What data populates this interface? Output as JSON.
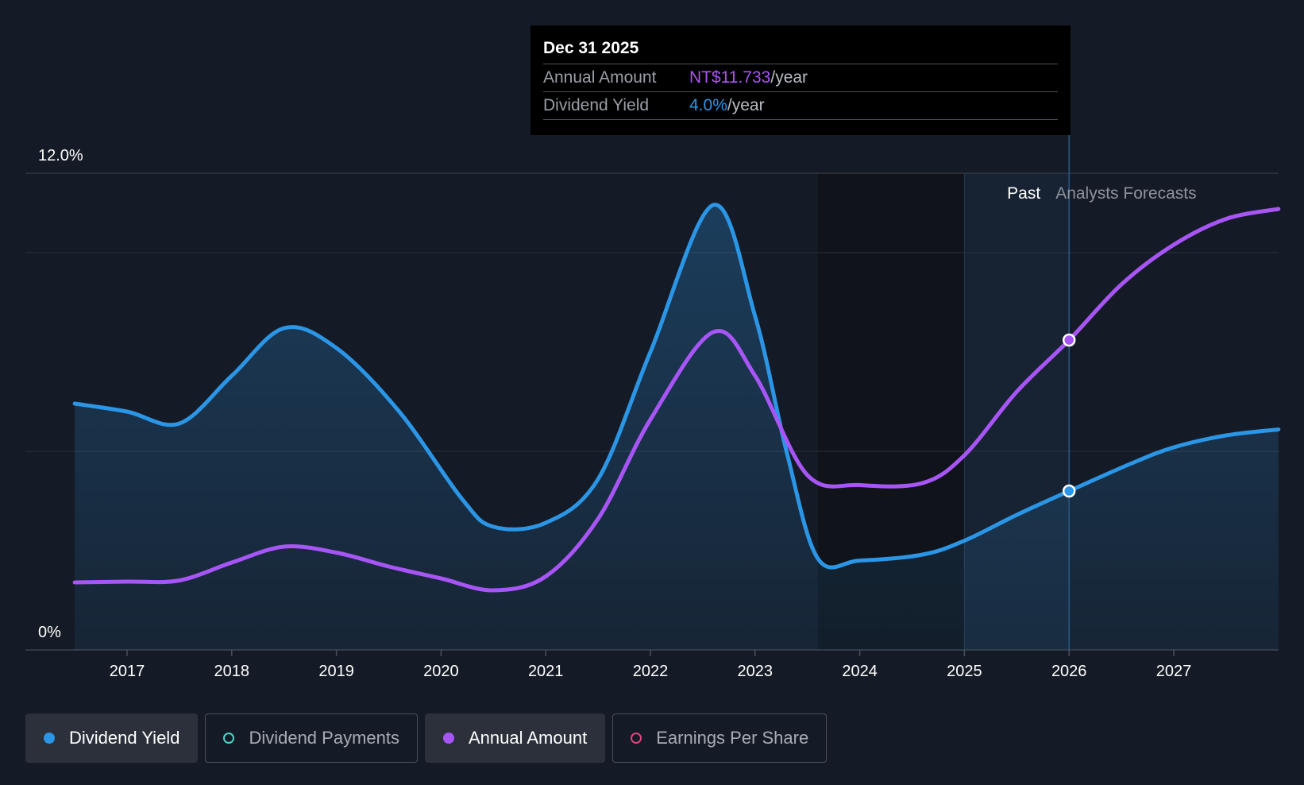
{
  "tooltip": {
    "date": "Dec 31 2025",
    "rows": [
      {
        "label": "Annual Amount",
        "value": "NT$11.733",
        "unit": "/year"
      },
      {
        "label": "Dividend Yield",
        "value": "4.0%",
        "unit": "/year"
      }
    ]
  },
  "legend": [
    {
      "label": "Dividend Yield",
      "color": "#2b95e6",
      "active": true,
      "filled": true
    },
    {
      "label": "Dividend Payments",
      "color": "#4fd1c5",
      "active": false,
      "filled": false
    },
    {
      "label": "Annual Amount",
      "color": "#a855f7",
      "active": true,
      "filled": true
    },
    {
      "label": "Earnings Per Share",
      "color": "#e0457b",
      "active": false,
      "filled": false
    }
  ],
  "chart_data": {
    "type": "line",
    "y_ticks": [
      "12.0%",
      "0%"
    ],
    "ylim": [
      0,
      12
    ],
    "xlim": [
      2016.5,
      2028.0
    ],
    "x_ticks": [
      "2017",
      "2018",
      "2019",
      "2020",
      "2021",
      "2022",
      "2023",
      "2024",
      "2025",
      "2026",
      "2027"
    ],
    "regions": {
      "past_label": "Past",
      "forecast_label": "Analysts Forecasts",
      "past_start": 2025.0,
      "forecast_start": 2026.0
    },
    "grid_y": [
      12,
      10,
      5,
      0
    ],
    "series": [
      {
        "name": "Dividend Yield",
        "color": "#2b95e6",
        "area": true,
        "points": [
          [
            2016.5,
            6.2
          ],
          [
            2017.0,
            6.0
          ],
          [
            2017.5,
            5.7
          ],
          [
            2018.0,
            6.9
          ],
          [
            2018.5,
            8.1
          ],
          [
            2019.0,
            7.6
          ],
          [
            2019.6,
            6.0
          ],
          [
            2020.2,
            3.8
          ],
          [
            2020.5,
            3.1
          ],
          [
            2021.0,
            3.2
          ],
          [
            2021.5,
            4.3
          ],
          [
            2022.0,
            7.5
          ],
          [
            2022.6,
            11.2
          ],
          [
            2023.0,
            8.4
          ],
          [
            2023.3,
            5.0
          ],
          [
            2023.6,
            2.3
          ],
          [
            2024.0,
            2.25
          ],
          [
            2024.6,
            2.4
          ],
          [
            2025.0,
            2.75
          ],
          [
            2025.5,
            3.4
          ],
          [
            2026.0,
            4.0
          ],
          [
            2026.6,
            4.7
          ],
          [
            2027.0,
            5.1
          ],
          [
            2027.5,
            5.4
          ],
          [
            2028.0,
            5.55
          ]
        ],
        "marker": [
          2026.0,
          4.0
        ]
      },
      {
        "name": "Annual Amount",
        "color": "#a855f7",
        "area": false,
        "points": [
          [
            2016.5,
            1.7
          ],
          [
            2017.0,
            1.72
          ],
          [
            2017.5,
            1.75
          ],
          [
            2018.0,
            2.2
          ],
          [
            2018.5,
            2.6
          ],
          [
            2019.0,
            2.45
          ],
          [
            2019.5,
            2.1
          ],
          [
            2020.0,
            1.8
          ],
          [
            2020.5,
            1.5
          ],
          [
            2021.0,
            1.85
          ],
          [
            2021.5,
            3.3
          ],
          [
            2022.0,
            5.8
          ],
          [
            2022.6,
            8.0
          ],
          [
            2023.0,
            6.9
          ],
          [
            2023.5,
            4.4
          ],
          [
            2024.0,
            4.15
          ],
          [
            2024.6,
            4.2
          ],
          [
            2025.0,
            4.9
          ],
          [
            2025.5,
            6.5
          ],
          [
            2026.0,
            7.8
          ],
          [
            2026.5,
            9.2
          ],
          [
            2027.0,
            10.2
          ],
          [
            2027.5,
            10.85
          ],
          [
            2028.0,
            11.1
          ]
        ],
        "marker": [
          2026.0,
          7.8
        ]
      }
    ]
  }
}
